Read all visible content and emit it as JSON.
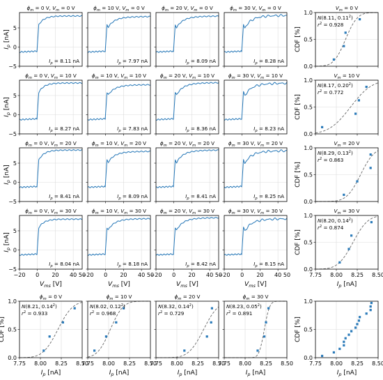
{
  "figure": {
    "sym_phi": "ϕ",
    "sym_V": "V",
    "sub_m": "m",
    "sub_ms": "ms",
    "sub_p": "p",
    "unit_V": "V",
    "unit_nA": "nA"
  },
  "chart_data": {
    "type": "grid of line and scatter plots",
    "trace_axes": {
      "xlabel_symbol": "V",
      "xlabel_sub": "ms",
      "xlabel_unit": "[V]",
      "ylabel_symbol": "I",
      "ylabel_sub": "p",
      "ylabel_unit": "[nA]",
      "xlim": [
        -20,
        50
      ],
      "ylim": [
        -5,
        9
      ],
      "xticks": [
        "-20",
        "0",
        "20",
        "40"
      ],
      "yticks": [
        "-5",
        "0",
        "5"
      ]
    },
    "cdf_axes": {
      "ylabel": "CDF [%]",
      "xlabel_symbol": "I",
      "xlabel_sub": "p",
      "xlabel_unit": "[nA]",
      "xlim": [
        7.75,
        8.5
      ],
      "ylim": [
        0,
        1
      ],
      "xticks": [
        "7.75",
        "8.00",
        "8.25",
        "8.50"
      ],
      "yticks": [
        "0.0",
        "0.5",
        "1.0"
      ]
    },
    "phi_m": [
      0,
      10,
      20,
      30
    ],
    "V_m": [
      0,
      10,
      20,
      30
    ],
    "traces": [
      [
        {
          "Ip": "8.11",
          "label": "I_p = 8.11 nA"
        },
        {
          "Ip": "7.97",
          "label": "I_p = 7.97 nA"
        },
        {
          "Ip": "8.09",
          "label": "I_p = 8.09 nA"
        },
        {
          "Ip": "8.28",
          "label": "I_p = 8.28 nA"
        }
      ],
      [
        {
          "Ip": "8.27",
          "label": "I_p = 8.27 nA"
        },
        {
          "Ip": "7.83",
          "label": "I_p = 7.83 nA"
        },
        {
          "Ip": "8.36",
          "label": "I_p = 8.36 nA"
        },
        {
          "Ip": "8.23",
          "label": "I_p = 8.23 nA"
        }
      ],
      [
        {
          "Ip": "8.41",
          "label": "I_p = 8.41 nA"
        },
        {
          "Ip": "8.09",
          "label": "I_p = 8.09 nA"
        },
        {
          "Ip": "8.41",
          "label": "I_p = 8.41 nA"
        },
        {
          "Ip": "8.25",
          "label": "I_p = 8.25 nA"
        }
      ],
      [
        {
          "Ip": "8.04",
          "label": "I_p = 8.04 nA"
        },
        {
          "Ip": "8.18",
          "label": "I_p = 8.18 nA"
        },
        {
          "Ip": "8.42",
          "label": "I_p = 8.42 nA"
        },
        {
          "Ip": "8.15",
          "label": "I_p = 8.15 nA"
        }
      ]
    ],
    "row_cdf": [
      {
        "title_V": 0,
        "mu": "8.11",
        "sigma": "0.11",
        "r2": "0.928",
        "points": [
          8.11,
          7.97,
          8.09,
          8.28
        ]
      },
      {
        "title_V": 10,
        "mu": "8.17",
        "sigma": "0.20",
        "r2": "0.772",
        "points": [
          8.27,
          7.83,
          8.36,
          8.23
        ]
      },
      {
        "title_V": 20,
        "mu": "8.29",
        "sigma": "0.13",
        "r2": "0.863",
        "points": [
          8.41,
          8.09,
          8.41,
          8.25
        ]
      },
      {
        "title_V": 30,
        "mu": "8.20",
        "sigma": "0.14",
        "r2": "0.874",
        "points": [
          8.04,
          8.18,
          8.42,
          8.15
        ]
      }
    ],
    "col_cdf": [
      {
        "title_phi": 0,
        "mu": "8.21",
        "sigma": "0.14",
        "r2": "0.933",
        "points": [
          8.11,
          8.27,
          8.41,
          8.04
        ]
      },
      {
        "title_phi": 10,
        "mu": "8.02",
        "sigma": "0.12",
        "r2": "0.968",
        "points": [
          7.97,
          7.83,
          8.09,
          8.18
        ]
      },
      {
        "title_phi": 20,
        "mu": "8.32",
        "sigma": "0.14",
        "r2": "0.729",
        "points": [
          8.09,
          8.36,
          8.41,
          8.42
        ]
      },
      {
        "title_phi": 30,
        "mu": "8.23",
        "sigma": "0.05",
        "r2": "0.891",
        "points": [
          8.28,
          8.23,
          8.25,
          8.15
        ]
      }
    ],
    "all_cdf_points": [
      7.83,
      7.97,
      8.04,
      8.09,
      8.09,
      8.11,
      8.15,
      8.18,
      8.23,
      8.25,
      8.27,
      8.28,
      8.36,
      8.41,
      8.41,
      8.42
    ]
  }
}
